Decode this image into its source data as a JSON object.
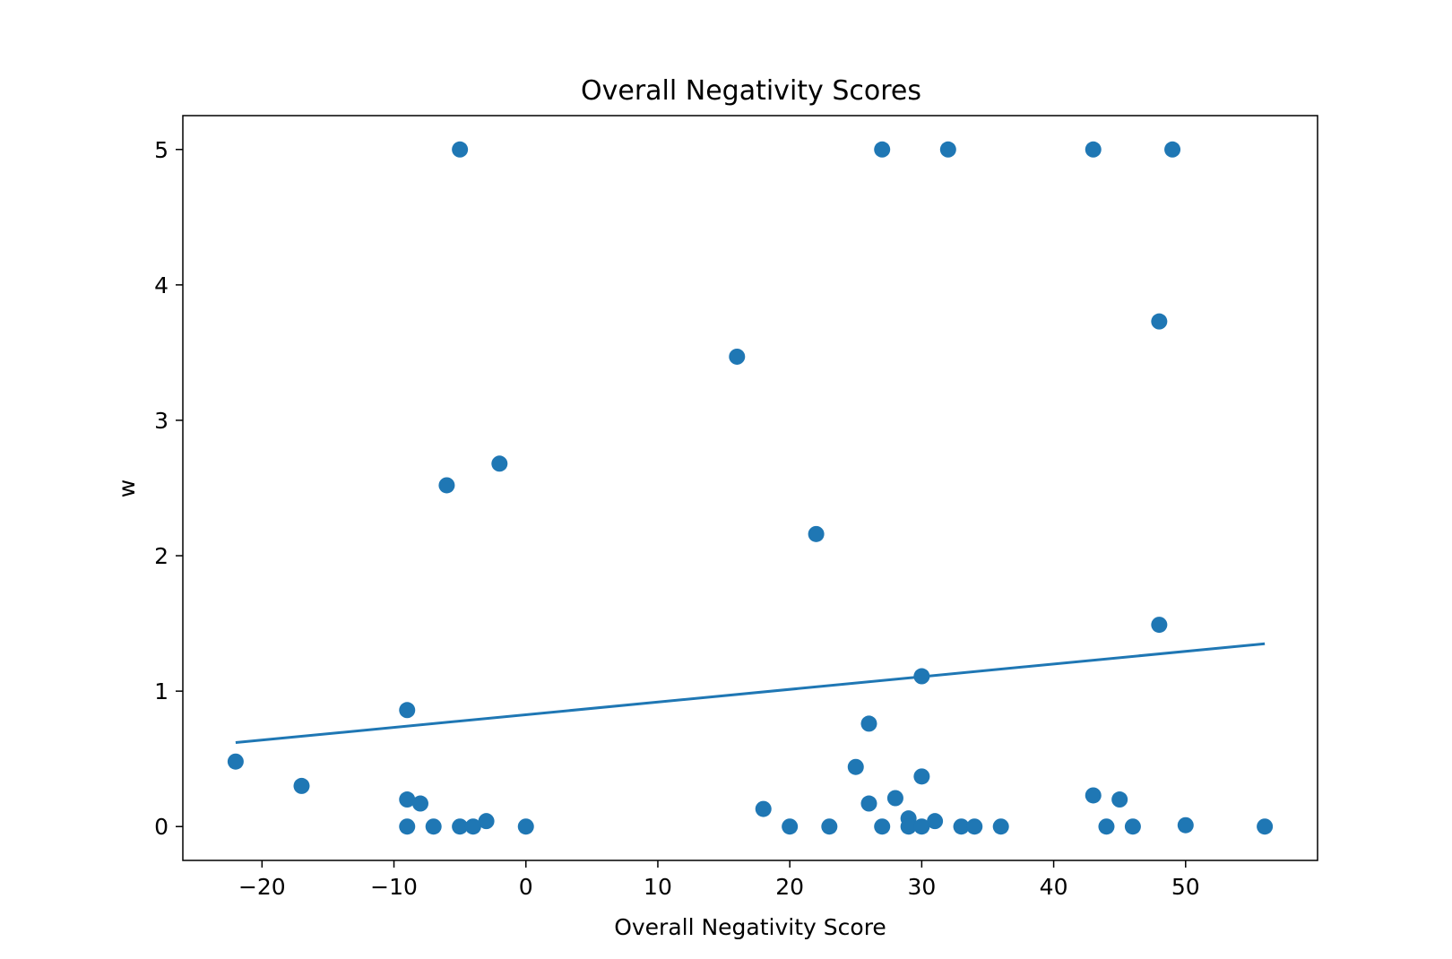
{
  "chart_data": {
    "type": "scatter",
    "title": "Overall Negativity Scores",
    "xlabel": "Overall Negativity Score",
    "ylabel": "w",
    "xlim": [
      -26,
      60
    ],
    "ylim": [
      -0.25,
      5.25
    ],
    "xticks": [
      -20,
      -10,
      0,
      10,
      20,
      30,
      40,
      50
    ],
    "xtick_labels": [
      "−20",
      "−10",
      "0",
      "10",
      "20",
      "30",
      "40",
      "50"
    ],
    "yticks": [
      0,
      1,
      2,
      3,
      4,
      5
    ],
    "ytick_labels": [
      "0",
      "1",
      "2",
      "3",
      "4",
      "5"
    ],
    "grid": false,
    "color": "#1f77b4",
    "series": [
      {
        "type": "scatter",
        "points": [
          [
            -5,
            5.0
          ],
          [
            27,
            5.0
          ],
          [
            32,
            5.0
          ],
          [
            43,
            5.0
          ],
          [
            49,
            5.0
          ],
          [
            48,
            3.73
          ],
          [
            16,
            3.47
          ],
          [
            -2,
            2.68
          ],
          [
            -6,
            2.52
          ],
          [
            22,
            2.16
          ],
          [
            48,
            1.49
          ],
          [
            30,
            1.11
          ],
          [
            -9,
            0.86
          ],
          [
            26,
            0.76
          ],
          [
            -22,
            0.48
          ],
          [
            25,
            0.44
          ],
          [
            30,
            0.37
          ],
          [
            -17,
            0.3
          ],
          [
            43,
            0.23
          ],
          [
            28,
            0.21
          ],
          [
            -9,
            0.2
          ],
          [
            45,
            0.2
          ],
          [
            -8,
            0.17
          ],
          [
            26,
            0.17
          ],
          [
            18,
            0.13
          ],
          [
            29,
            0.06
          ],
          [
            -3,
            0.04
          ],
          [
            31,
            0.04
          ],
          [
            50,
            0.01
          ],
          [
            -9,
            0.0
          ],
          [
            -7,
            0.0
          ],
          [
            -5,
            0.0
          ],
          [
            -4,
            0.0
          ],
          [
            0,
            0.0
          ],
          [
            20,
            0.0
          ],
          [
            23,
            0.0
          ],
          [
            27,
            0.0
          ],
          [
            29,
            0.0
          ],
          [
            30,
            0.0
          ],
          [
            33,
            0.0
          ],
          [
            34,
            0.0
          ],
          [
            36,
            0.0
          ],
          [
            44,
            0.0
          ],
          [
            46,
            0.0
          ],
          [
            56,
            0.0
          ]
        ]
      },
      {
        "type": "line",
        "points": [
          [
            -22,
            0.62
          ],
          [
            56,
            1.35
          ]
        ]
      }
    ]
  }
}
